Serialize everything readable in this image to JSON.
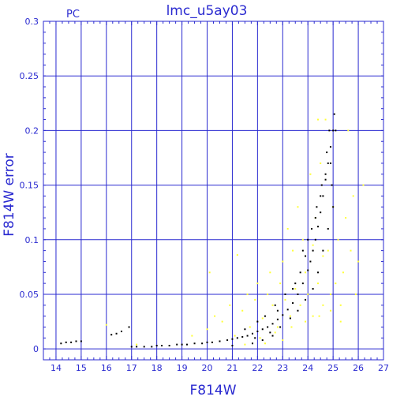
{
  "chart_data": {
    "type": "scatter",
    "title": "lmc_u5ay03",
    "corner_label": "PC",
    "xlabel": "F814W",
    "ylabel": "F814W error",
    "xlim": [
      13.5,
      27
    ],
    "ylim": [
      -0.01,
      0.3
    ],
    "x_ticks": [
      14,
      15,
      16,
      17,
      18,
      19,
      20,
      21,
      22,
      23,
      24,
      25,
      26,
      27
    ],
    "x_tick_labels": [
      "14",
      "15",
      "16",
      "17",
      "18",
      "19",
      "20",
      "21",
      "22",
      "23",
      "24",
      "25",
      "26",
      "27"
    ],
    "y_ticks": [
      0,
      0.05,
      0.1,
      0.15,
      0.2,
      0.25,
      0.3
    ],
    "y_tick_labels": [
      "0",
      "0.05",
      "0.1",
      "0.15",
      "0.2",
      "0.25",
      "0.3"
    ],
    "grid": true,
    "colors": {
      "axis": "#2a2ad0",
      "grid": "#2a2ad0",
      "black_series": "#000000",
      "yellow_series": "#ffff33",
      "background": "#ffffff"
    },
    "series": [
      {
        "color": "#000000",
        "points": [
          [
            14.2,
            0.005
          ],
          [
            14.4,
            0.006
          ],
          [
            14.6,
            0.006
          ],
          [
            14.8,
            0.007
          ],
          [
            15.0,
            0.007
          ],
          [
            16.2,
            0.013
          ],
          [
            16.4,
            0.014
          ],
          [
            16.6,
            0.016
          ],
          [
            16.9,
            0.02
          ],
          [
            17.0,
            0.002
          ],
          [
            17.2,
            0.002
          ],
          [
            17.5,
            0.002
          ],
          [
            17.8,
            0.002
          ],
          [
            18.0,
            0.003
          ],
          [
            18.2,
            0.003
          ],
          [
            18.5,
            0.003
          ],
          [
            18.8,
            0.004
          ],
          [
            19.0,
            0.004
          ],
          [
            19.2,
            0.004
          ],
          [
            19.5,
            0.005
          ],
          [
            19.8,
            0.005
          ],
          [
            20.0,
            0.006
          ],
          [
            20.2,
            0.006
          ],
          [
            20.5,
            0.007
          ],
          [
            20.8,
            0.008
          ],
          [
            21.0,
            0.009
          ],
          [
            21.2,
            0.01
          ],
          [
            21.4,
            0.011
          ],
          [
            21.6,
            0.012
          ],
          [
            21.8,
            0.014
          ],
          [
            22.0,
            0.016
          ],
          [
            22.2,
            0.018
          ],
          [
            22.4,
            0.02
          ],
          [
            22.6,
            0.023
          ],
          [
            22.8,
            0.027
          ],
          [
            23.0,
            0.031
          ],
          [
            23.2,
            0.036
          ],
          [
            23.4,
            0.042
          ],
          [
            23.6,
            0.05
          ],
          [
            23.8,
            0.06
          ],
          [
            24.0,
            0.072
          ],
          [
            24.1,
            0.08
          ],
          [
            24.2,
            0.09
          ],
          [
            24.3,
            0.1
          ],
          [
            24.4,
            0.112
          ],
          [
            24.5,
            0.125
          ],
          [
            24.6,
            0.14
          ],
          [
            24.7,
            0.155
          ],
          [
            24.8,
            0.17
          ],
          [
            24.9,
            0.185
          ],
          [
            25.0,
            0.2
          ],
          [
            25.05,
            0.215
          ],
          [
            21.5,
            0.018
          ],
          [
            22.3,
            0.03
          ],
          [
            22.7,
            0.04
          ],
          [
            23.1,
            0.05
          ],
          [
            23.5,
            0.06
          ],
          [
            23.7,
            0.07
          ],
          [
            23.9,
            0.085
          ],
          [
            24.0,
            0.1
          ],
          [
            24.3,
            0.12
          ],
          [
            24.5,
            0.14
          ],
          [
            24.7,
            0.16
          ],
          [
            24.9,
            0.17
          ],
          [
            21.9,
            0.01
          ],
          [
            22.5,
            0.015
          ],
          [
            22.9,
            0.02
          ],
          [
            23.3,
            0.028
          ],
          [
            23.6,
            0.035
          ],
          [
            23.9,
            0.045
          ],
          [
            24.2,
            0.055
          ],
          [
            24.4,
            0.07
          ],
          [
            24.6,
            0.09
          ],
          [
            24.8,
            0.11
          ],
          [
            25.0,
            0.13
          ],
          [
            25.1,
            0.2
          ],
          [
            24.95,
            0.15
          ],
          [
            21.0,
            0.003
          ],
          [
            21.8,
            0.005
          ],
          [
            22.2,
            0.008
          ],
          [
            22.6,
            0.012
          ],
          [
            22.0,
            0.025
          ],
          [
            22.8,
            0.035
          ],
          [
            23.4,
            0.055
          ],
          [
            23.8,
            0.09
          ],
          [
            24.15,
            0.11
          ],
          [
            24.35,
            0.13
          ],
          [
            24.55,
            0.15
          ],
          [
            24.75,
            0.18
          ],
          [
            24.85,
            0.2
          ]
        ]
      },
      {
        "color": "#ffff33",
        "points": [
          [
            16.0,
            0.022
          ],
          [
            17.2,
            0.004
          ],
          [
            19.4,
            0.012
          ],
          [
            20.0,
            0.018
          ],
          [
            20.1,
            0.07
          ],
          [
            20.3,
            0.03
          ],
          [
            20.6,
            0.025
          ],
          [
            20.9,
            0.04
          ],
          [
            21.1,
            0.012
          ],
          [
            21.2,
            0.086
          ],
          [
            21.4,
            0.035
          ],
          [
            21.6,
            0.05
          ],
          [
            21.7,
            0.02
          ],
          [
            21.9,
            0.045
          ],
          [
            22.0,
            0.06
          ],
          [
            22.2,
            0.028
          ],
          [
            22.4,
            0.05
          ],
          [
            22.5,
            0.07
          ],
          [
            22.6,
            0.04
          ],
          [
            22.8,
            0.02
          ],
          [
            22.9,
            0.06
          ],
          [
            23.0,
            0.08
          ],
          [
            23.1,
            0.045
          ],
          [
            23.2,
            0.11
          ],
          [
            23.3,
            0.03
          ],
          [
            23.4,
            0.09
          ],
          [
            23.5,
            0.055
          ],
          [
            23.6,
            0.13
          ],
          [
            23.7,
            0.04
          ],
          [
            23.8,
            0.1
          ],
          [
            23.9,
            0.07
          ],
          [
            24.0,
            0.05
          ],
          [
            24.1,
            0.16
          ],
          [
            24.2,
            0.03
          ],
          [
            24.3,
            0.12
          ],
          [
            24.4,
            0.06
          ],
          [
            24.5,
            0.17
          ],
          [
            24.6,
            0.04
          ],
          [
            24.7,
            0.21
          ],
          [
            24.8,
            0.09
          ],
          [
            24.9,
            0.05
          ],
          [
            25.0,
            0.13
          ],
          [
            25.1,
            0.06
          ],
          [
            25.2,
            0.1
          ],
          [
            25.3,
            0.04
          ],
          [
            25.4,
            0.07
          ],
          [
            25.5,
            0.12
          ],
          [
            25.6,
            0.2
          ],
          [
            25.8,
            0.14
          ],
          [
            25.9,
            0.05
          ],
          [
            26.0,
            0.08
          ],
          [
            26.2,
            0.15
          ],
          [
            22.1,
            0.01
          ],
          [
            22.7,
            0.015
          ],
          [
            23.35,
            0.02
          ],
          [
            23.9,
            0.025
          ],
          [
            24.45,
            0.03
          ],
          [
            24.9,
            0.035
          ],
          [
            25.3,
            0.025
          ],
          [
            22.3,
            0.005
          ],
          [
            23.0,
            0.008
          ],
          [
            21.5,
            0.004
          ],
          [
            24.6,
            0.085
          ],
          [
            24.2,
            0.095
          ],
          [
            25.7,
            0.09
          ],
          [
            24.4,
            0.21
          ]
        ]
      }
    ]
  }
}
